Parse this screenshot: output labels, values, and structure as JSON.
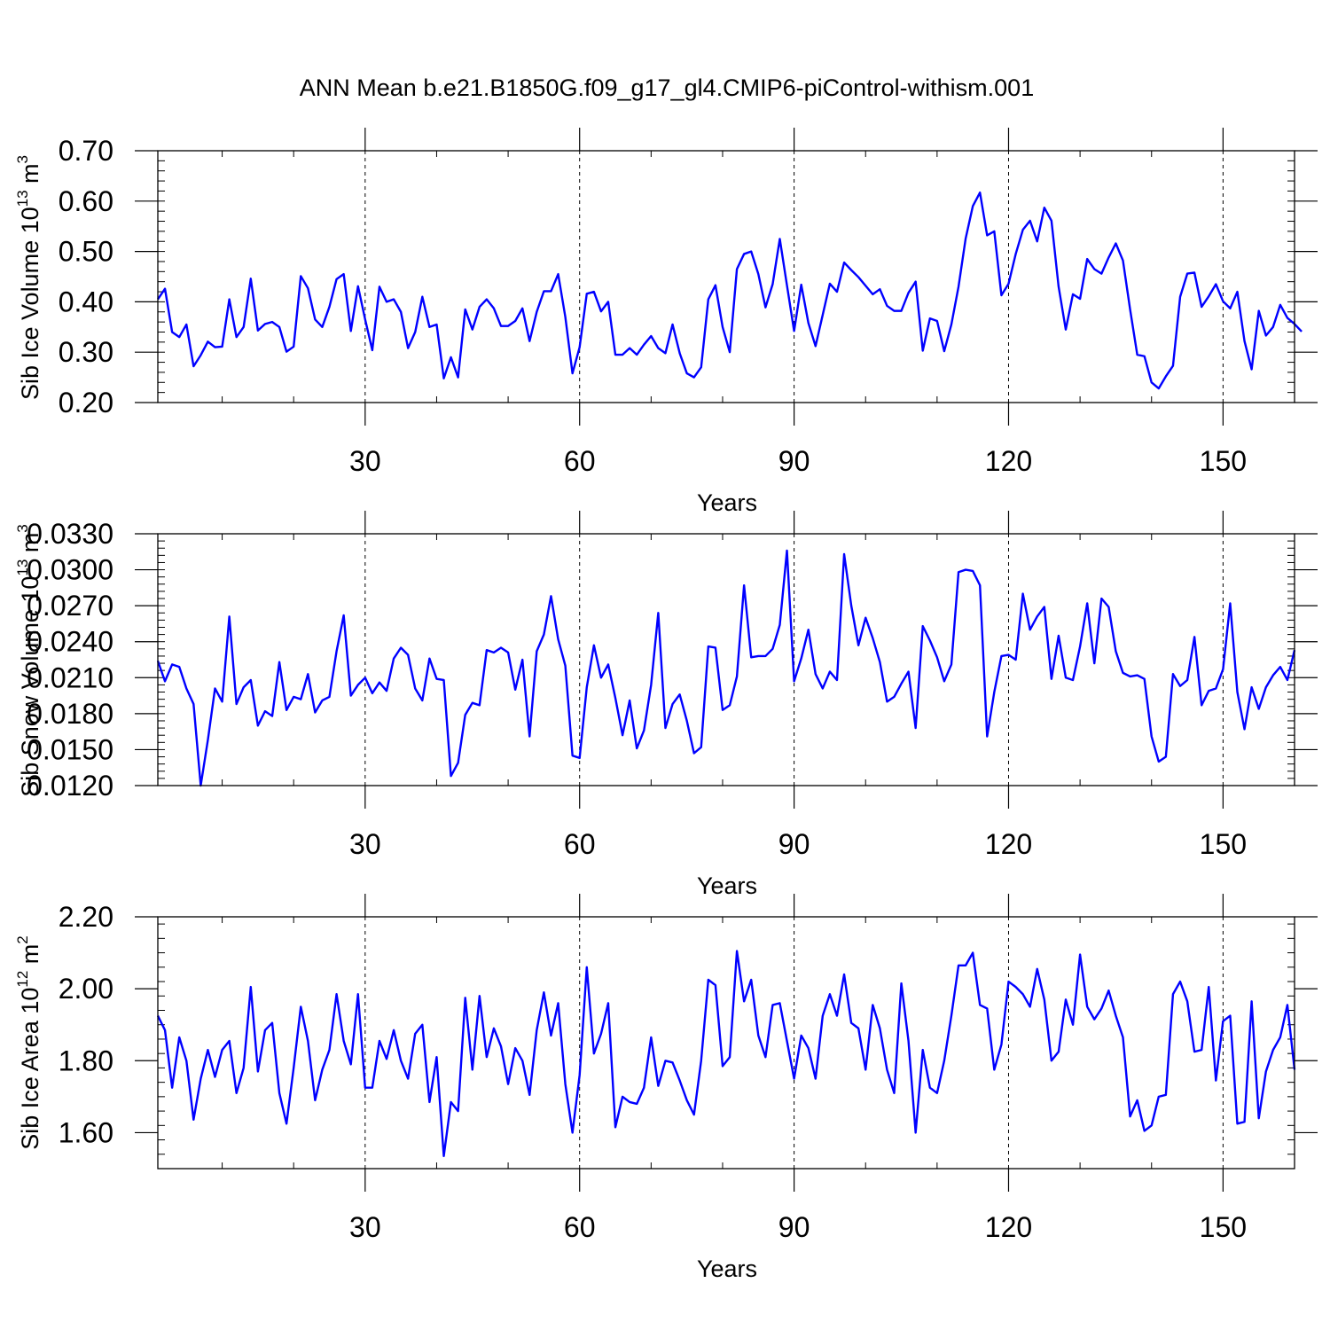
{
  "title": "ANN Mean b.e21.B1850G.f09_g17_gl4.CMIP6-piControl-withism.001",
  "line_color": "#0000ff",
  "chart_data": [
    {
      "type": "line",
      "title": "",
      "xlabel": "Years",
      "ylabel": {
        "prefix": "Sib Ice Volume 10",
        "exp": "13",
        "unit": " m",
        "unit_exp": "3"
      },
      "xlim": [
        1,
        160
      ],
      "ylim": [
        0.2,
        0.7
      ],
      "xticks": [
        30,
        60,
        90,
        120,
        150
      ],
      "yticks": [
        "0.20",
        "0.30",
        "0.40",
        "0.50",
        "0.60",
        "0.70"
      ],
      "grid": "vertical dashed lines at x ticks",
      "series": [
        {
          "x_start": 1,
          "values": [
            0.405,
            0.426,
            0.34,
            0.33,
            0.355,
            0.272,
            0.294,
            0.321,
            0.31,
            0.311,
            0.405,
            0.33,
            0.35,
            0.446,
            0.343,
            0.356,
            0.36,
            0.35,
            0.301,
            0.311,
            0.451,
            0.427,
            0.365,
            0.35,
            0.39,
            0.445,
            0.455,
            0.342,
            0.431,
            0.365,
            0.304,
            0.43,
            0.4,
            0.405,
            0.38,
            0.308,
            0.34,
            0.41,
            0.35,
            0.355,
            0.248,
            0.29,
            0.25,
            0.385,
            0.345,
            0.39,
            0.405,
            0.387,
            0.352,
            0.352,
            0.362,
            0.387,
            0.322,
            0.38,
            0.421,
            0.421,
            0.455,
            0.37,
            0.258,
            0.31,
            0.416,
            0.42,
            0.381,
            0.4,
            0.295,
            0.295,
            0.308,
            0.295,
            0.315,
            0.332,
            0.308,
            0.298,
            0.355,
            0.298,
            0.258,
            0.25,
            0.27,
            0.405,
            0.433,
            0.35,
            0.3,
            0.465,
            0.495,
            0.5,
            0.455,
            0.389,
            0.435,
            0.525,
            0.433,
            0.342,
            0.434,
            0.358,
            0.312,
            0.374,
            0.436,
            0.42,
            0.478,
            0.463,
            0.449,
            0.432,
            0.415,
            0.425,
            0.392,
            0.382,
            0.382,
            0.418,
            0.44,
            0.303,
            0.367,
            0.362,
            0.302,
            0.355,
            0.43,
            0.526,
            0.59,
            0.617,
            0.532,
            0.54,
            0.413,
            0.436,
            0.495,
            0.543,
            0.561,
            0.52,
            0.587,
            0.561,
            0.43,
            0.345,
            0.415,
            0.406,
            0.485,
            0.465,
            0.456,
            0.488,
            0.516,
            0.482,
            0.385,
            0.295,
            0.292,
            0.24,
            0.228,
            0.252,
            0.273,
            0.41,
            0.456,
            0.458,
            0.39,
            0.411,
            0.435,
            0.401,
            0.387,
            0.42,
            0.322,
            0.266,
            0.382,
            0.333,
            0.35,
            0.394,
            0.368,
            0.356,
            0.341
          ]
        }
      ]
    },
    {
      "type": "line",
      "title": "",
      "xlabel": "Years",
      "ylabel": {
        "prefix": "Sib Snow Volume 10",
        "exp": "13",
        "unit": " m",
        "unit_exp": "3"
      },
      "xlim": [
        1,
        160
      ],
      "ylim": [
        0.012,
        0.033
      ],
      "xticks": [
        30,
        60,
        90,
        120,
        150
      ],
      "yticks": [
        "0.0120",
        "0.0150",
        "0.0180",
        "0.0210",
        "0.0240",
        "0.0270",
        "0.0300",
        "0.0330"
      ],
      "grid": "vertical dashed lines at x ticks",
      "series": [
        {
          "x_start": 1,
          "values": [
            0.0224,
            0.0207,
            0.0221,
            0.0219,
            0.0201,
            0.0188,
            0.012,
            0.0158,
            0.0201,
            0.019,
            0.0261,
            0.0188,
            0.0202,
            0.0208,
            0.017,
            0.0182,
            0.0178,
            0.0223,
            0.0183,
            0.0194,
            0.0192,
            0.0213,
            0.0181,
            0.0191,
            0.0194,
            0.0232,
            0.0262,
            0.0195,
            0.0204,
            0.021,
            0.0197,
            0.0206,
            0.0199,
            0.0226,
            0.0235,
            0.0229,
            0.0201,
            0.0191,
            0.0226,
            0.0209,
            0.0208,
            0.0128,
            0.0139,
            0.0179,
            0.0189,
            0.0187,
            0.0233,
            0.0231,
            0.0235,
            0.0231,
            0.02,
            0.0225,
            0.0161,
            0.0232,
            0.0246,
            0.0278,
            0.0242,
            0.022,
            0.0145,
            0.0143,
            0.0202,
            0.0237,
            0.021,
            0.0221,
            0.0193,
            0.0162,
            0.0191,
            0.0151,
            0.0166,
            0.0204,
            0.0264,
            0.0168,
            0.0188,
            0.0196,
            0.0174,
            0.0147,
            0.0152,
            0.0236,
            0.0235,
            0.0183,
            0.0187,
            0.0211,
            0.0287,
            0.0227,
            0.0228,
            0.0228,
            0.0234,
            0.0254,
            0.0316,
            0.0207,
            0.0226,
            0.025,
            0.0213,
            0.0201,
            0.0215,
            0.0208,
            0.0313,
            0.027,
            0.0237,
            0.026,
            0.0243,
            0.0223,
            0.019,
            0.0194,
            0.0205,
            0.0215,
            0.0168,
            0.0253,
            0.0241,
            0.0227,
            0.0207,
            0.0221,
            0.0298,
            0.03,
            0.0299,
            0.0287,
            0.0161,
            0.0198,
            0.0228,
            0.0229,
            0.0225,
            0.028,
            0.025,
            0.0261,
            0.0269,
            0.0209,
            0.0245,
            0.021,
            0.0208,
            0.0236,
            0.0272,
            0.0222,
            0.0276,
            0.0269,
            0.0232,
            0.0214,
            0.0211,
            0.0212,
            0.0209,
            0.0161,
            0.014,
            0.0144,
            0.0213,
            0.0203,
            0.0208,
            0.0244,
            0.0187,
            0.0199,
            0.0201,
            0.0217,
            0.0272,
            0.0198,
            0.0167,
            0.0202,
            0.0184,
            0.0202,
            0.0212,
            0.0219,
            0.0208,
            0.0233
          ]
        }
      ]
    },
    {
      "type": "line",
      "title": "",
      "xlabel": "Years",
      "ylabel": {
        "prefix": "Sib Ice Area 10",
        "exp": "12",
        "unit": " m",
        "unit_exp": "2"
      },
      "xlim": [
        1,
        160
      ],
      "ylim": [
        1.5,
        2.2
      ],
      "xticks": [
        30,
        60,
        90,
        120,
        150
      ],
      "yticks": [
        "1.60",
        "1.80",
        "2.00",
        "2.20"
      ],
      "grid": "vertical dashed lines at x ticks",
      "series": [
        {
          "x_start": 1,
          "values": [
            1.925,
            1.885,
            1.725,
            1.865,
            1.8,
            1.636,
            1.75,
            1.83,
            1.755,
            1.83,
            1.855,
            1.71,
            1.78,
            2.005,
            1.77,
            1.885,
            1.905,
            1.71,
            1.625,
            1.78,
            1.95,
            1.855,
            1.69,
            1.775,
            1.83,
            1.985,
            1.855,
            1.79,
            1.985,
            1.725,
            1.725,
            1.855,
            1.805,
            1.885,
            1.8,
            1.75,
            1.875,
            1.9,
            1.685,
            1.81,
            1.535,
            1.685,
            1.66,
            1.975,
            1.775,
            1.98,
            1.81,
            1.89,
            1.84,
            1.735,
            1.835,
            1.8,
            1.705,
            1.885,
            1.99,
            1.87,
            1.96,
            1.735,
            1.6,
            1.76,
            2.06,
            1.82,
            1.875,
            1.96,
            1.615,
            1.7,
            1.685,
            1.68,
            1.725,
            1.865,
            1.73,
            1.8,
            1.795,
            1.745,
            1.69,
            1.65,
            1.8,
            2.025,
            2.01,
            1.785,
            1.81,
            2.105,
            1.965,
            2.025,
            1.87,
            1.81,
            1.955,
            1.96,
            1.855,
            1.75,
            1.87,
            1.835,
            1.75,
            1.925,
            1.985,
            1.925,
            2.04,
            1.905,
            1.89,
            1.775,
            1.955,
            1.89,
            1.775,
            1.71,
            2.015,
            1.855,
            1.6,
            1.83,
            1.725,
            1.71,
            1.8,
            1.925,
            2.065,
            2.065,
            2.1,
            1.955,
            1.945,
            1.775,
            1.845,
            2.02,
            2.005,
            1.985,
            1.95,
            2.055,
            1.97,
            1.8,
            1.825,
            1.97,
            1.9,
            2.095,
            1.95,
            1.915,
            1.945,
            1.995,
            1.925,
            1.865,
            1.645,
            1.69,
            1.605,
            1.62,
            1.7,
            1.705,
            1.985,
            2.02,
            1.965,
            1.825,
            1.83,
            2.005,
            1.745,
            1.91,
            1.925,
            1.625,
            1.63,
            1.965,
            1.64,
            1.77,
            1.83,
            1.865,
            1.955,
            1.775
          ]
        }
      ]
    }
  ]
}
